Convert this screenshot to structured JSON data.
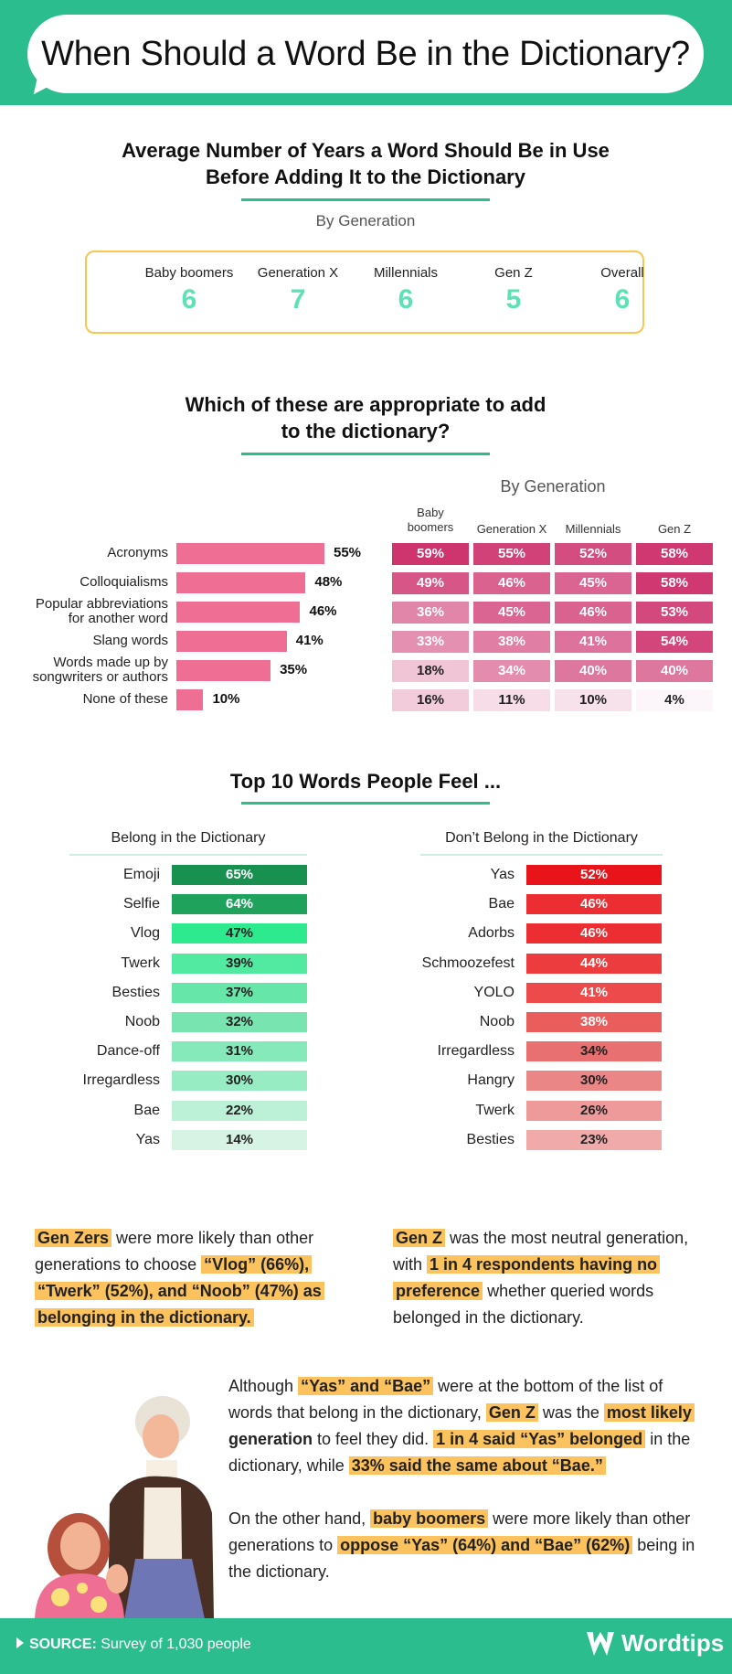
{
  "title": "When Should a Word Be in the Dictionary?",
  "section1": {
    "heading_line1": "Average Number of Years a Word Should Be in Use",
    "heading_line2": "Before Adding It to the Dictionary",
    "subheading": "By Generation",
    "generations": [
      {
        "label": "Baby boomers",
        "value": "6"
      },
      {
        "label": "Generation X",
        "value": "7"
      },
      {
        "label": "Millennials",
        "value": "6"
      },
      {
        "label": "Gen Z",
        "value": "5"
      },
      {
        "label": "Overall",
        "value": "6"
      }
    ]
  },
  "section2": {
    "heading_line1": "Which of these are appropriate to add",
    "heading_line2": "to the dictionary?",
    "by_generation": "By Generation",
    "col_heads": [
      {
        "line1": "Baby",
        "line2": "boomers"
      },
      {
        "line1": "Generation X",
        "line2": ""
      },
      {
        "line1": "Millennials",
        "line2": ""
      },
      {
        "line1": "Gen Z",
        "line2": ""
      }
    ],
    "rows": [
      {
        "line1": "Acronyms",
        "line2": ""
      },
      {
        "line1": "Colloquialisms",
        "line2": ""
      },
      {
        "line1": "Popular abbreviations",
        "line2": "for another word"
      },
      {
        "line1": "Slang words",
        "line2": ""
      },
      {
        "line1": "Words made up by",
        "line2": "songwriters or authors"
      },
      {
        "line1": "None of these",
        "line2": ""
      }
    ]
  },
  "section3": {
    "heading": "Top 10 Words People Feel ...",
    "left_title": "Belong in the Dictionary",
    "right_title": "Don’t Belong in the Dictionary"
  },
  "chart_data": [
    {
      "type": "bar",
      "title": "Which of these are appropriate to add to the dictionary? (Overall)",
      "categories": [
        "Acronyms",
        "Colloquialisms",
        "Popular abbreviations for another word",
        "Slang words",
        "Words made up by songwriters or authors",
        "None of these"
      ],
      "values": [
        55,
        48,
        46,
        41,
        35,
        10
      ],
      "value_labels": [
        "55%",
        "48%",
        "46%",
        "41%",
        "35%",
        "10%"
      ],
      "color": "#ef6e94"
    },
    {
      "type": "heatmap",
      "title": "By Generation",
      "rows": [
        "Acronyms",
        "Colloquialisms",
        "Popular abbreviations for another word",
        "Slang words",
        "Words made up by songwriters or authors",
        "None of these"
      ],
      "columns": [
        "Baby boomers",
        "Generation X",
        "Millennials",
        "Gen Z"
      ],
      "values": [
        [
          59,
          55,
          52,
          58
        ],
        [
          49,
          46,
          45,
          58
        ],
        [
          36,
          45,
          46,
          53
        ],
        [
          33,
          38,
          41,
          54
        ],
        [
          18,
          34,
          40,
          40
        ],
        [
          16,
          11,
          10,
          4
        ]
      ],
      "labels": [
        [
          "59%",
          "55%",
          "52%",
          "58%"
        ],
        [
          "49%",
          "46%",
          "45%",
          "58%"
        ],
        [
          "36%",
          "45%",
          "46%",
          "53%"
        ],
        [
          "33%",
          "38%",
          "41%",
          "54%"
        ],
        [
          "18%",
          "34%",
          "40%",
          "40%"
        ],
        [
          "16%",
          "11%",
          "10%",
          "4%"
        ]
      ]
    },
    {
      "type": "table",
      "title": "Belong in the Dictionary",
      "categories": [
        "Emoji",
        "Selfie",
        "Vlog",
        "Twerk",
        "Besties",
        "Noob",
        "Dance-off",
        "Irregardless",
        "Bae",
        "Yas"
      ],
      "values": [
        65,
        64,
        47,
        39,
        37,
        32,
        31,
        30,
        22,
        14
      ],
      "value_labels": [
        "65%",
        "64%",
        "47%",
        "39%",
        "37%",
        "32%",
        "31%",
        "30%",
        "22%",
        "14%"
      ],
      "colors": [
        "#18904f",
        "#1fa35c",
        "#2eea8e",
        "#52e9a0",
        "#66e6a8",
        "#78e5b0",
        "#86e9b9",
        "#98ecc3",
        "#bdf1d7",
        "#d6f3e4"
      ]
    },
    {
      "type": "table",
      "title": "Don’t Belong in the Dictionary",
      "categories": [
        "Yas",
        "Bae",
        "Adorbs",
        "Schmoozefest",
        "YOLO",
        "Noob",
        "Irregardless",
        "Hangry",
        "Twerk",
        "Besties"
      ],
      "values": [
        52,
        46,
        46,
        44,
        41,
        38,
        34,
        30,
        26,
        23
      ],
      "value_labels": [
        "52%",
        "46%",
        "46%",
        "44%",
        "41%",
        "38%",
        "34%",
        "30%",
        "26%",
        "23%"
      ],
      "colors": [
        "#e8141a",
        "#ec2e32",
        "#ec2e32",
        "#ec3c3e",
        "#ec4a4b",
        "#ea5d5d",
        "#e87070",
        "#eb8686",
        "#ee9a9a",
        "#f0aaaa"
      ]
    }
  ],
  "callouts": {
    "left": {
      "h1": "Gen Zers",
      "t1": " were more likely than other",
      "t2": "generations to choose ",
      "h2": "“Vlog” (66%),",
      "h3": "“Twerk” (52%), and “Noob” (47%) as",
      "h4": "belonging in the dictionary."
    },
    "right": {
      "h1": "Gen Z",
      "t1": " was the most neutral generation,",
      "t2": "with ",
      "h2": "1 in 4 respondents having no",
      "h3": "preference",
      "t3": " whether queried words",
      "t4": "belonged in the dictionary."
    },
    "bottom1": {
      "t1": "Although ",
      "h1": "“Yas” and “Bae”",
      "t2": " were at the bottom of the list of",
      "t3": "words that belong in the dictionary, ",
      "h2": "Gen Z",
      "t4": " was the ",
      "h3": "most likely",
      "h4": "generation",
      "t5": " to feel they did. ",
      "h5": "1 in 4 said “Yas” belonged",
      "t6": " in the",
      "t7": "dictionary, while ",
      "h6": "33% said the same about “Bae.”"
    },
    "bottom2": {
      "t1": "On the other hand, ",
      "h1": "baby boomers",
      "t2": " were more likely than other",
      "t3": "generations to ",
      "h2": "oppose “Yas” (64%) and “Bae” (62%)",
      "t4": " being in",
      "t5": "the dictionary."
    }
  },
  "footer": {
    "source_label": "SOURCE:",
    "source_text": " Survey of 1,030 people",
    "brand": "Wordtips"
  }
}
